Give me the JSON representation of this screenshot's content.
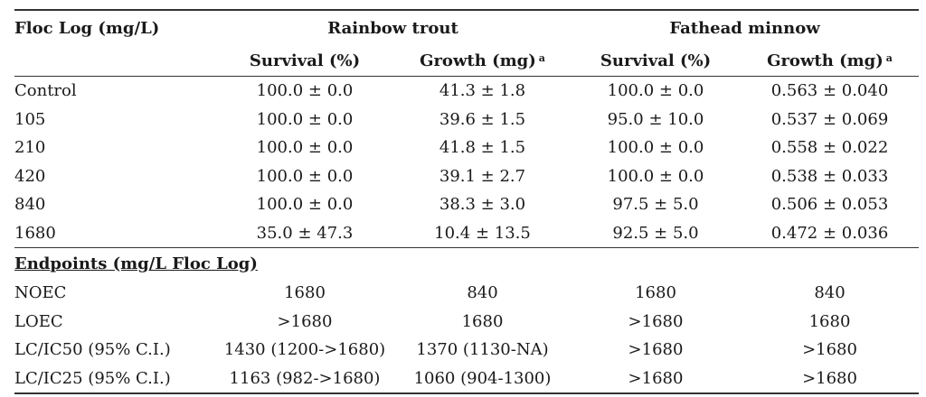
{
  "table": {
    "header": {
      "first_col": "Floc Log (mg/L)",
      "groups": [
        "Rainbow trout",
        "Fathead minnow"
      ],
      "sub": [
        "Survival (%)",
        "Growth (mg)",
        "Survival (%)",
        "Growth (mg)"
      ],
      "footnote_mark": "a"
    },
    "rows": [
      {
        "label": "Control",
        "values": [
          "100.0 ± 0.0",
          "41.3 ± 1.8",
          "100.0 ± 0.0",
          "0.563 ± 0.040"
        ]
      },
      {
        "label": "105",
        "values": [
          "100.0 ± 0.0",
          "39.6 ± 1.5",
          "95.0 ± 10.0",
          "0.537 ± 0.069"
        ]
      },
      {
        "label": "210",
        "values": [
          "100.0 ± 0.0",
          "41.8 ± 1.5",
          "100.0 ± 0.0",
          "0.558 ± 0.022"
        ]
      },
      {
        "label": "420",
        "values": [
          "100.0 ± 0.0",
          "39.1 ± 2.7",
          "100.0 ± 0.0",
          "0.538 ± 0.033"
        ]
      },
      {
        "label": "840",
        "values": [
          "100.0 ± 0.0",
          "38.3 ± 3.0",
          "97.5 ± 5.0",
          "0.506 ± 0.053"
        ]
      },
      {
        "label": "1680",
        "values": [
          "35.0 ± 47.3",
          "10.4 ± 13.5",
          "92.5 ± 5.0",
          "0.472 ± 0.036"
        ]
      }
    ],
    "section_title": "Endpoints (mg/L Floc Log)",
    "endpoints": [
      {
        "label": "NOEC",
        "values": [
          "1680",
          "840",
          "1680",
          "840"
        ]
      },
      {
        "label": "LOEC",
        "values": [
          ">1680",
          "1680",
          ">1680",
          "1680"
        ]
      },
      {
        "label": "LC/IC50 (95% C.I.)",
        "values": [
          "1430 (1200->1680)",
          "1370 (1130-NA)",
          ">1680",
          ">1680"
        ]
      },
      {
        "label": "LC/IC25 (95% C.I.)",
        "values": [
          "1163 (982->1680)",
          "1060 (904-1300)",
          ">1680",
          ">1680"
        ]
      }
    ]
  }
}
